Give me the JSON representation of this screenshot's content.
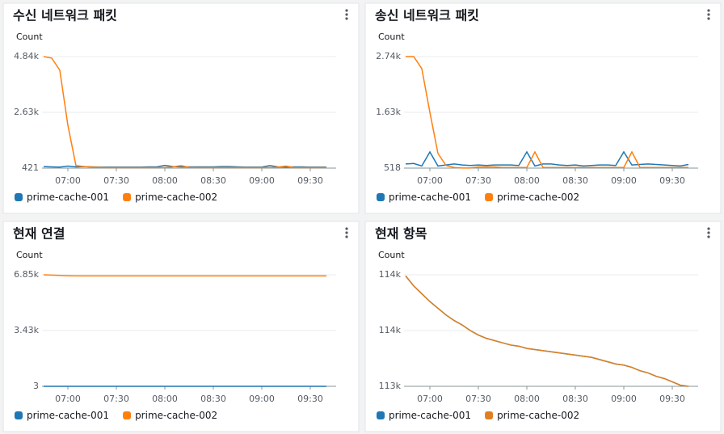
{
  "chart_data": [
    {
      "type": "line",
      "title": "수신 네트워크 패킷",
      "y_label": "Count",
      "x": [
        405,
        410,
        415,
        420,
        425,
        430,
        435,
        440,
        445,
        450,
        455,
        460,
        465,
        470,
        475,
        480,
        485,
        490,
        495,
        500,
        505,
        510,
        515,
        520,
        525,
        530,
        535,
        540,
        545,
        550,
        555,
        560,
        565,
        570,
        575,
        580
      ],
      "xlim": [
        404,
        586
      ],
      "xticks": [
        {
          "value": 420,
          "label": "07:00"
        },
        {
          "value": 450,
          "label": "07:30"
        },
        {
          "value": 480,
          "label": "08:00"
        },
        {
          "value": 510,
          "label": "08:30"
        },
        {
          "value": 540,
          "label": "09:00"
        },
        {
          "value": 570,
          "label": "09:30"
        }
      ],
      "ylim": [
        421,
        4840
      ],
      "yticks": [
        421,
        {
          "value": 2630,
          "label": "2.63k"
        },
        {
          "value": 4840,
          "label": "4.84k"
        }
      ],
      "series": [
        {
          "name": "prime-cache-001",
          "color": "#1f77b4",
          "values": [
            480,
            470,
            460,
            500,
            470,
            480,
            470,
            460,
            460,
            460,
            460,
            460,
            460,
            470,
            470,
            530,
            480,
            470,
            470,
            470,
            470,
            470,
            480,
            480,
            470,
            460,
            460,
            460,
            520,
            470,
            460,
            470,
            470,
            460,
            460,
            460
          ]
        },
        {
          "name": "prime-cache-002",
          "color": "#ff7f0e",
          "values": [
            4840,
            4780,
            4300,
            2120,
            520,
            480,
            460,
            450,
            440,
            440,
            440,
            440,
            440,
            440,
            440,
            440,
            470,
            520,
            450,
            440,
            440,
            440,
            440,
            440,
            440,
            440,
            440,
            440,
            440,
            460,
            500,
            440,
            440,
            440,
            440,
            440
          ]
        }
      ]
    },
    {
      "type": "line",
      "title": "송신 네트워크 패킷",
      "y_label": "Count",
      "x": [
        405,
        410,
        415,
        420,
        425,
        430,
        435,
        440,
        445,
        450,
        455,
        460,
        465,
        470,
        475,
        480,
        485,
        490,
        495,
        500,
        505,
        510,
        515,
        520,
        525,
        530,
        535,
        540,
        545,
        550,
        555,
        560,
        565,
        570,
        575,
        580
      ],
      "xlim": [
        404,
        586
      ],
      "xticks": [
        {
          "value": 420,
          "label": "07:00"
        },
        {
          "value": 450,
          "label": "07:30"
        },
        {
          "value": 480,
          "label": "08:00"
        },
        {
          "value": 510,
          "label": "08:30"
        },
        {
          "value": 540,
          "label": "09:00"
        },
        {
          "value": 570,
          "label": "09:30"
        }
      ],
      "ylim": [
        518,
        2740
      ],
      "yticks": [
        518,
        {
          "value": 1630,
          "label": "1.63k"
        },
        {
          "value": 2740,
          "label": "2.74k"
        }
      ],
      "series": [
        {
          "name": "prime-cache-001",
          "color": "#1f77b4",
          "values": [
            600,
            610,
            560,
            840,
            560,
            580,
            600,
            580,
            570,
            580,
            570,
            580,
            580,
            580,
            570,
            840,
            560,
            600,
            600,
            580,
            570,
            580,
            560,
            570,
            580,
            580,
            570,
            840,
            580,
            590,
            600,
            590,
            580,
            570,
            560,
            590
          ]
        },
        {
          "name": "prime-cache-002",
          "color": "#ff7f0e",
          "values": [
            2740,
            2740,
            2500,
            1630,
            810,
            570,
            530,
            520,
            520,
            540,
            540,
            540,
            530,
            530,
            530,
            530,
            840,
            530,
            530,
            530,
            530,
            530,
            530,
            530,
            530,
            530,
            530,
            530,
            840,
            530,
            530,
            530,
            530,
            530,
            530,
            530
          ]
        }
      ]
    },
    {
      "type": "line",
      "title": "현재 연결",
      "y_label": "Count",
      "x": [
        405,
        410,
        415,
        420,
        425,
        430,
        435,
        440,
        445,
        450,
        455,
        460,
        465,
        470,
        475,
        480,
        485,
        490,
        495,
        500,
        505,
        510,
        515,
        520,
        525,
        530,
        535,
        540,
        545,
        550,
        555,
        560,
        565,
        570,
        575,
        580
      ],
      "xlim": [
        404,
        586
      ],
      "xticks": [
        {
          "value": 420,
          "label": "07:00"
        },
        {
          "value": 450,
          "label": "07:30"
        },
        {
          "value": 480,
          "label": "08:00"
        },
        {
          "value": 510,
          "label": "08:30"
        },
        {
          "value": 540,
          "label": "09:00"
        },
        {
          "value": 570,
          "label": "09:30"
        }
      ],
      "ylim": [
        3,
        6850
      ],
      "yticks": [
        3,
        {
          "value": 3430,
          "label": "3.43k"
        },
        {
          "value": 6850,
          "label": "6.85k"
        }
      ],
      "series": [
        {
          "name": "prime-cache-001",
          "color": "#1f77b4",
          "values": [
            3,
            3,
            3,
            3,
            3,
            3,
            3,
            3,
            3,
            3,
            3,
            3,
            3,
            3,
            3,
            3,
            3,
            3,
            3,
            3,
            3,
            3,
            3,
            3,
            3,
            3,
            3,
            3,
            3,
            3,
            3,
            3,
            3,
            3,
            3,
            3
          ]
        },
        {
          "name": "prime-cache-002",
          "color": "#ff7f0e",
          "values": [
            6850,
            6830,
            6810,
            6790,
            6780,
            6780,
            6780,
            6780,
            6780,
            6780,
            6780,
            6780,
            6780,
            6780,
            6780,
            6780,
            6780,
            6780,
            6780,
            6780,
            6780,
            6780,
            6780,
            6780,
            6780,
            6780,
            6780,
            6780,
            6780,
            6780,
            6780,
            6780,
            6780,
            6780,
            6780,
            6780
          ]
        }
      ]
    },
    {
      "type": "line",
      "title": "현재 항목",
      "y_label": "Count",
      "x": [
        405,
        410,
        415,
        420,
        425,
        430,
        435,
        440,
        445,
        450,
        455,
        460,
        465,
        470,
        475,
        480,
        485,
        490,
        495,
        500,
        505,
        510,
        515,
        520,
        525,
        530,
        535,
        540,
        545,
        550,
        555,
        560,
        565,
        570,
        575,
        580
      ],
      "xlim": [
        404,
        586
      ],
      "xticks": [
        {
          "value": 420,
          "label": "07:00"
        },
        {
          "value": 450,
          "label": "07:30"
        },
        {
          "value": 480,
          "label": "08:00"
        },
        {
          "value": 510,
          "label": "08:30"
        },
        {
          "value": 540,
          "label": "09:00"
        },
        {
          "value": 570,
          "label": "09:30"
        }
      ],
      "ylim": [
        113400,
        114400
      ],
      "yticks": [
        {
          "value": 113400,
          "label": "113k"
        },
        {
          "value": 113900,
          "label": "114k"
        },
        {
          "value": 114400,
          "label": "114k"
        }
      ],
      "series": [
        {
          "name": "prime-cache-001",
          "color": "#1f77b4",
          "values": [
            114390,
            114300,
            114230,
            114160,
            114100,
            114040,
            113990,
            113950,
            113900,
            113860,
            113830,
            113810,
            113790,
            113770,
            113760,
            113740,
            113730,
            113720,
            113710,
            113700,
            113690,
            113680,
            113670,
            113660,
            113640,
            113620,
            113600,
            113590,
            113570,
            113540,
            113520,
            113490,
            113470,
            113440,
            113410,
            113400
          ]
        },
        {
          "name": "prime-cache-002",
          "color": "#e07f1f",
          "values": [
            114390,
            114300,
            114230,
            114160,
            114100,
            114040,
            113990,
            113950,
            113900,
            113860,
            113830,
            113810,
            113790,
            113770,
            113760,
            113740,
            113730,
            113720,
            113710,
            113700,
            113690,
            113680,
            113670,
            113660,
            113640,
            113620,
            113600,
            113590,
            113570,
            113540,
            113520,
            113490,
            113470,
            113440,
            113410,
            113400
          ]
        }
      ]
    }
  ]
}
